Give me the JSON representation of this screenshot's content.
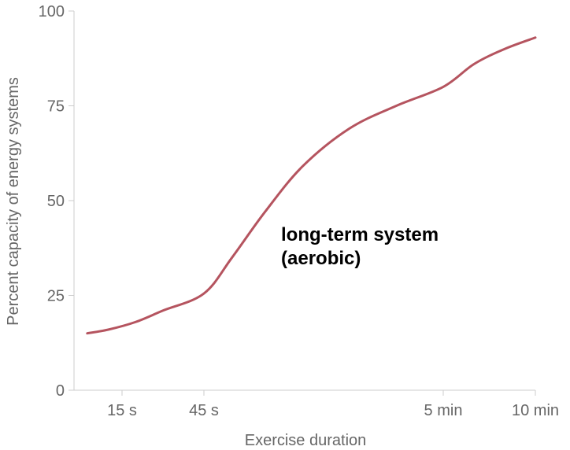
{
  "chart_data": {
    "type": "line",
    "xlabel": "Exercise duration",
    "ylabel": "Percent capacity of energy systems",
    "ylim": [
      0,
      100
    ],
    "y_ticks": [
      0,
      25,
      50,
      75,
      100
    ],
    "x_ticks": [
      {
        "label": "15 s",
        "value": 15
      },
      {
        "label": "45 s",
        "value": 45
      },
      {
        "label": "5 min",
        "value": 300
      },
      {
        "label": "10 min",
        "value": 600
      }
    ],
    "x_scale": "nonlinear",
    "grid": false,
    "series": [
      {
        "name": "long-term system (aerobic)",
        "color": "#b5545f",
        "points": [
          {
            "x": 2,
            "y": 15
          },
          {
            "x": 10,
            "y": 16
          },
          {
            "x": 20,
            "y": 18
          },
          {
            "x": 30,
            "y": 21
          },
          {
            "x": 45,
            "y": 25.5
          },
          {
            "x": 75,
            "y": 35
          },
          {
            "x": 110,
            "y": 47
          },
          {
            "x": 150,
            "y": 59
          },
          {
            "x": 200,
            "y": 69
          },
          {
            "x": 250,
            "y": 75
          },
          {
            "x": 300,
            "y": 80
          },
          {
            "x": 400,
            "y": 86
          },
          {
            "x": 500,
            "y": 90
          },
          {
            "x": 600,
            "y": 93
          }
        ]
      }
    ],
    "annotation": {
      "line1": "long-term system",
      "line2": "(aerobic)"
    }
  }
}
